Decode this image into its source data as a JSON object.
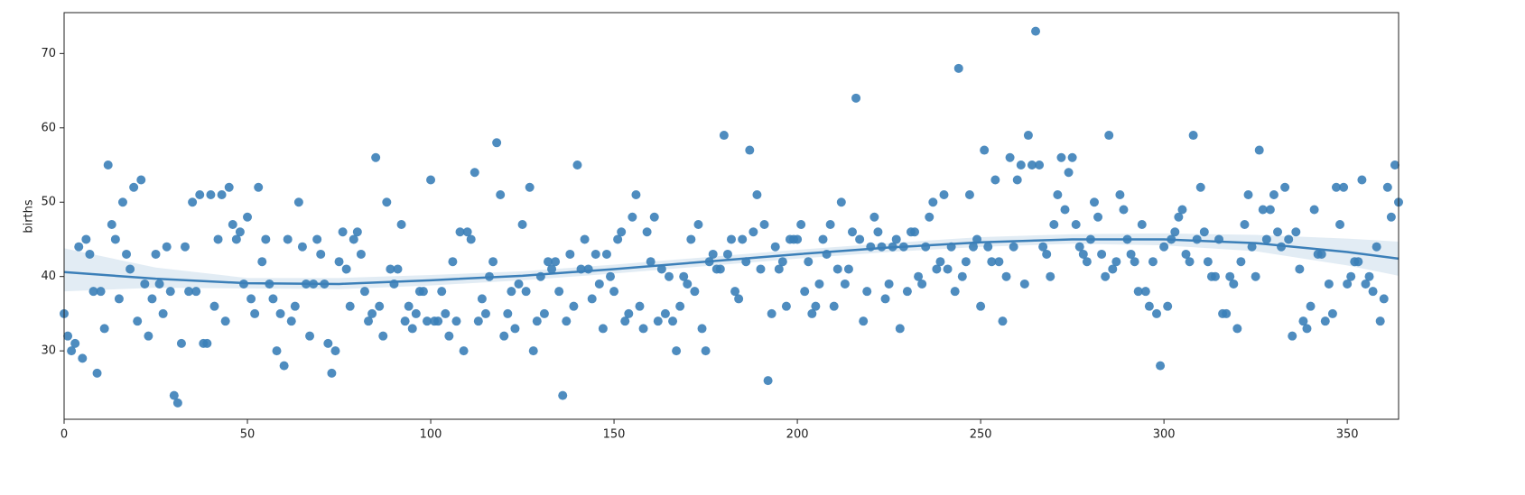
{
  "chart_data": {
    "type": "scatter",
    "y_label": "births",
    "color": "#3b7fb8",
    "xlim": [
      0,
      364
    ],
    "ylim": [
      20.8,
      75.5
    ],
    "xticks": [
      0,
      50,
      100,
      150,
      200,
      250,
      300,
      350
    ],
    "yticks": [
      30,
      40,
      50,
      60,
      70
    ],
    "x": [
      0,
      1,
      2,
      3,
      4,
      5,
      6,
      7,
      8,
      9,
      10,
      11,
      12,
      13,
      14,
      15,
      16,
      17,
      18,
      19,
      20,
      21,
      22,
      23,
      24,
      25,
      26,
      27,
      28,
      29,
      30,
      31,
      32,
      33,
      34,
      35,
      36,
      37,
      38,
      39,
      40,
      41,
      42,
      43,
      44,
      45,
      46,
      47,
      48,
      49,
      50,
      51,
      52,
      53,
      54,
      55,
      56,
      57,
      58,
      59,
      60,
      61,
      62,
      63,
      64,
      65,
      66,
      67,
      68,
      69,
      70,
      71,
      72,
      73,
      74,
      75,
      76,
      77,
      78,
      79,
      80,
      81,
      82,
      83,
      84,
      85,
      86,
      87,
      88,
      89,
      90,
      91,
      92,
      93,
      94,
      95,
      96,
      97,
      98,
      99,
      100,
      101,
      102,
      103,
      104,
      105,
      106,
      107,
      108,
      109,
      110,
      111,
      112,
      113,
      114,
      115,
      116,
      117,
      118,
      119,
      120,
      121,
      122,
      123,
      124,
      125,
      126,
      127,
      128,
      129,
      130,
      131,
      132,
      133,
      134,
      135,
      136,
      137,
      138,
      139,
      140,
      141,
      142,
      143,
      144,
      145,
      146,
      147,
      148,
      149,
      150,
      151,
      152,
      153,
      154,
      155,
      156,
      157,
      158,
      159,
      160,
      161,
      162,
      163,
      164,
      165,
      166,
      167,
      168,
      169,
      170,
      171,
      172,
      173,
      174,
      175,
      176,
      177,
      178,
      179,
      180,
      181,
      182,
      183,
      184,
      185,
      186,
      187,
      188,
      189,
      190,
      191,
      192,
      193,
      194,
      195,
      196,
      197,
      198,
      199,
      200,
      201,
      202,
      203,
      204,
      205,
      206,
      207,
      208,
      209,
      210,
      211,
      212,
      213,
      214,
      215,
      216,
      217,
      218,
      219,
      220,
      221,
      222,
      223,
      224,
      225,
      226,
      227,
      228,
      229,
      230,
      231,
      232,
      233,
      234,
      235,
      236,
      237,
      238,
      239,
      240,
      241,
      242,
      243,
      244,
      245,
      246,
      247,
      248,
      249,
      250,
      251,
      252,
      253,
      254,
      255,
      256,
      257,
      258,
      259,
      260,
      261,
      262,
      263,
      264,
      265,
      266,
      267,
      268,
      269,
      270,
      271,
      272,
      273,
      274,
      275,
      276,
      277,
      278,
      279,
      280,
      281,
      282,
      283,
      284,
      285,
      286,
      287,
      288,
      289,
      290,
      291,
      292,
      293,
      294,
      295,
      296,
      297,
      298,
      299,
      300,
      301,
      302,
      303,
      304,
      305,
      306,
      307,
      308,
      309,
      310,
      311,
      312,
      313,
      314,
      315,
      316,
      317,
      318,
      319,
      320,
      321,
      322,
      323,
      324,
      325,
      326,
      327,
      328,
      329,
      330,
      331,
      332,
      333,
      334,
      335,
      336,
      337,
      338,
      339,
      340,
      341,
      342,
      343,
      344,
      345,
      346,
      347,
      348,
      349,
      350,
      351,
      352,
      353,
      354,
      355,
      356,
      357,
      358,
      359,
      360,
      361,
      362,
      363,
      364
    ],
    "values": [
      35,
      32,
      30,
      31,
      44,
      29,
      45,
      43,
      38,
      27,
      38,
      33,
      55,
      47,
      45,
      37,
      50,
      43,
      41,
      52,
      34,
      53,
      39,
      32,
      37,
      43,
      39,
      35,
      44,
      38,
      24,
      23,
      31,
      44,
      38,
      50,
      38,
      51,
      31,
      31,
      51,
      36,
      45,
      51,
      34,
      52,
      47,
      45,
      46,
      39,
      48,
      37,
      35,
      52,
      42,
      45,
      39,
      37,
      30,
      35,
      28,
      45,
      34,
      36,
      50,
      44,
      39,
      32,
      39,
      45,
      43,
      39,
      31,
      27,
      30,
      42,
      46,
      41,
      36,
      45,
      46,
      43,
      38,
      34,
      35,
      56,
      36,
      32,
      50,
      41,
      39,
      41,
      47,
      34,
      36,
      33,
      35,
      38,
      38,
      34,
      53,
      34,
      34,
      38,
      35,
      32,
      42,
      34,
      46,
      30,
      46,
      45,
      54,
      34,
      37,
      35,
      40,
      42,
      58,
      51,
      32,
      35,
      38,
      33,
      39,
      47,
      38,
      52,
      30,
      34,
      40,
      35,
      42,
      41,
      42,
      38,
      24,
      34,
      43,
      36,
      55,
      41,
      45,
      41,
      37,
      43,
      39,
      33,
      43,
      40,
      38,
      45,
      46,
      34,
      35,
      48,
      51,
      36,
      33,
      46,
      42,
      48,
      34,
      41,
      35,
      40,
      34,
      30,
      36,
      40,
      39,
      45,
      38,
      47,
      33,
      30,
      42,
      43,
      41,
      41,
      59,
      43,
      45,
      38,
      37,
      45,
      42,
      57,
      46,
      51,
      41,
      47,
      26,
      35,
      44,
      41,
      42,
      36,
      45,
      45,
      45,
      47,
      38,
      42,
      35,
      36,
      39,
      45,
      43,
      47,
      36,
      41,
      50,
      39,
      41,
      46,
      64,
      45,
      34,
      38,
      44,
      48,
      46,
      44,
      37,
      39,
      44,
      45,
      33,
      44,
      38,
      46,
      46,
      40,
      39,
      44,
      48,
      50,
      41,
      42,
      51,
      41,
      44,
      38,
      68,
      40,
      42,
      51,
      44,
      45,
      36,
      57,
      44,
      42,
      53,
      42,
      34,
      40,
      56,
      44,
      53,
      55,
      39,
      59,
      55,
      73,
      55,
      44,
      43,
      40,
      47,
      51,
      56,
      49,
      54,
      56,
      47,
      44,
      43,
      42,
      45,
      50,
      48,
      43,
      40,
      59,
      41,
      42,
      51,
      49,
      45,
      43,
      42,
      38,
      47,
      38,
      36,
      42,
      35,
      28,
      44,
      36,
      45,
      46,
      48,
      49,
      43,
      42,
      59,
      45,
      52,
      46,
      42,
      40,
      40,
      45,
      35,
      35,
      40,
      39,
      33,
      42,
      47,
      51,
      44,
      40,
      57,
      49,
      45,
      49,
      51,
      46,
      44,
      52,
      45,
      32,
      46,
      41,
      34,
      33,
      36,
      49,
      43,
      43,
      34,
      39,
      35,
      52,
      47,
      52,
      39,
      40,
      42,
      42,
      53,
      39,
      40,
      38,
      44,
      34,
      37,
      52,
      48,
      55,
      50
    ],
    "fit": {
      "x": [
        0,
        25,
        50,
        75,
        100,
        125,
        150,
        175,
        200,
        225,
        250,
        275,
        300,
        325,
        350,
        364
      ],
      "values": [
        40.6,
        39.7,
        39.1,
        39.0,
        39.5,
        40.1,
        41.0,
        42.0,
        43.0,
        43.9,
        44.6,
        45.0,
        45.0,
        44.5,
        43.3,
        42.4
      ],
      "ci_lower": [
        38.0,
        38.5,
        38.4,
        38.3,
        38.8,
        39.5,
        40.4,
        41.4,
        42.4,
        43.3,
        44.0,
        44.4,
        44.2,
        43.4,
        41.5,
        40.1
      ],
      "ci_upper": [
        43.8,
        41.2,
        39.8,
        39.8,
        40.2,
        40.7,
        41.6,
        42.6,
        43.6,
        44.5,
        45.3,
        45.7,
        45.8,
        45.6,
        45.1,
        44.7
      ]
    }
  }
}
